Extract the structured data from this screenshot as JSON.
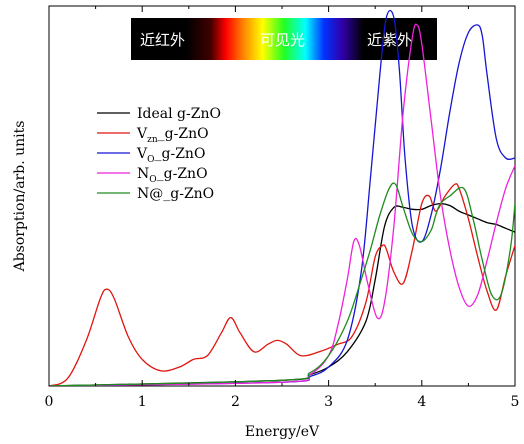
{
  "chart_data": {
    "type": "line",
    "title": "",
    "xlabel": "Energy/eV",
    "ylabel": "Absorption/arb. units",
    "xlim": [
      0,
      5
    ],
    "ylim": [
      0,
      1
    ],
    "xticks": [
      "0",
      "1",
      "2",
      "3",
      "4",
      "5"
    ],
    "grid": false,
    "legend_position": "upper-left",
    "spectrum_band": {
      "labels": [
        "近红外",
        "可见光",
        "近紫外"
      ]
    },
    "series": [
      {
        "name": "Ideal g-ZnO",
        "color": "#000000",
        "x": [
          0,
          2.5,
          2.8,
          3.0,
          3.2,
          3.4,
          3.5,
          3.6,
          3.7,
          3.8,
          3.9,
          4.0,
          4.1,
          4.2,
          4.3,
          4.4,
          4.5,
          4.6,
          4.7,
          4.8,
          4.9,
          5.0
        ],
        "y": [
          0.0,
          0.015,
          0.03,
          0.05,
          0.09,
          0.17,
          0.28,
          0.42,
          0.47,
          0.47,
          0.465,
          0.465,
          0.475,
          0.48,
          0.475,
          0.46,
          0.45,
          0.44,
          0.43,
          0.425,
          0.415,
          0.405
        ]
      },
      {
        "name": "Vzn_g-ZnO",
        "color": "#e0150f",
        "x": [
          0,
          0.2,
          0.4,
          0.55,
          0.62,
          0.7,
          0.85,
          1.0,
          1.2,
          1.4,
          1.55,
          1.7,
          1.85,
          1.95,
          2.05,
          2.2,
          2.35,
          2.45,
          2.55,
          2.7,
          2.9,
          3.1,
          3.25,
          3.4,
          3.5,
          3.58,
          3.62,
          3.7,
          3.8,
          3.9,
          4.0,
          4.08,
          4.15,
          4.25,
          4.35,
          4.4,
          4.5,
          4.6,
          4.7,
          4.8,
          4.9,
          5.0
        ],
        "y": [
          0.0,
          0.02,
          0.12,
          0.23,
          0.255,
          0.23,
          0.13,
          0.07,
          0.04,
          0.05,
          0.07,
          0.08,
          0.14,
          0.18,
          0.14,
          0.09,
          0.11,
          0.12,
          0.11,
          0.08,
          0.09,
          0.11,
          0.13,
          0.22,
          0.34,
          0.37,
          0.36,
          0.3,
          0.27,
          0.36,
          0.48,
          0.5,
          0.46,
          0.5,
          0.53,
          0.52,
          0.44,
          0.34,
          0.25,
          0.2,
          0.29,
          0.37
        ]
      },
      {
        "name": "VO_g-ZnO",
        "color": "#1515d4",
        "x": [
          0,
          2.5,
          2.8,
          3.0,
          3.2,
          3.35,
          3.45,
          3.55,
          3.62,
          3.7,
          3.76,
          3.82,
          3.9,
          4.0,
          4.1,
          4.2,
          4.3,
          4.4,
          4.5,
          4.6,
          4.65,
          4.7,
          4.8,
          4.9,
          5.0
        ],
        "y": [
          0.0,
          0.01,
          0.025,
          0.05,
          0.12,
          0.3,
          0.55,
          0.82,
          0.97,
          0.97,
          0.83,
          0.6,
          0.42,
          0.38,
          0.45,
          0.57,
          0.72,
          0.85,
          0.93,
          0.95,
          0.92,
          0.82,
          0.65,
          0.6,
          0.6
        ]
      },
      {
        "name": "NO_g-ZnO",
        "color": "#ee22dd",
        "x": [
          0,
          2.5,
          2.8,
          3.0,
          3.1,
          3.2,
          3.27,
          3.33,
          3.42,
          3.52,
          3.6,
          3.7,
          3.8,
          3.9,
          3.95,
          4.0,
          4.1,
          4.2,
          4.3,
          4.4,
          4.5,
          4.6,
          4.7,
          4.8,
          4.9,
          5.0
        ],
        "y": [
          0.0,
          0.01,
          0.03,
          0.08,
          0.16,
          0.28,
          0.38,
          0.37,
          0.27,
          0.18,
          0.22,
          0.42,
          0.72,
          0.92,
          0.95,
          0.9,
          0.7,
          0.5,
          0.36,
          0.26,
          0.21,
          0.24,
          0.33,
          0.43,
          0.52,
          0.58
        ]
      },
      {
        "name": "N@_g-ZnO",
        "color": "#1e8c1e",
        "x": [
          0,
          2.5,
          2.8,
          3.0,
          3.2,
          3.35,
          3.45,
          3.55,
          3.65,
          3.72,
          3.8,
          3.9,
          4.0,
          4.1,
          4.15,
          4.2,
          4.3,
          4.45,
          4.55,
          4.65,
          4.75,
          4.85,
          4.95,
          5.0
        ],
        "y": [
          0.0,
          0.015,
          0.035,
          0.08,
          0.17,
          0.28,
          0.36,
          0.45,
          0.52,
          0.53,
          0.47,
          0.4,
          0.38,
          0.41,
          0.45,
          0.48,
          0.5,
          0.52,
          0.44,
          0.33,
          0.24,
          0.24,
          0.36,
          0.48
        ]
      }
    ]
  },
  "colors": {
    "axis": "#000000",
    "band_background": "#000000"
  }
}
